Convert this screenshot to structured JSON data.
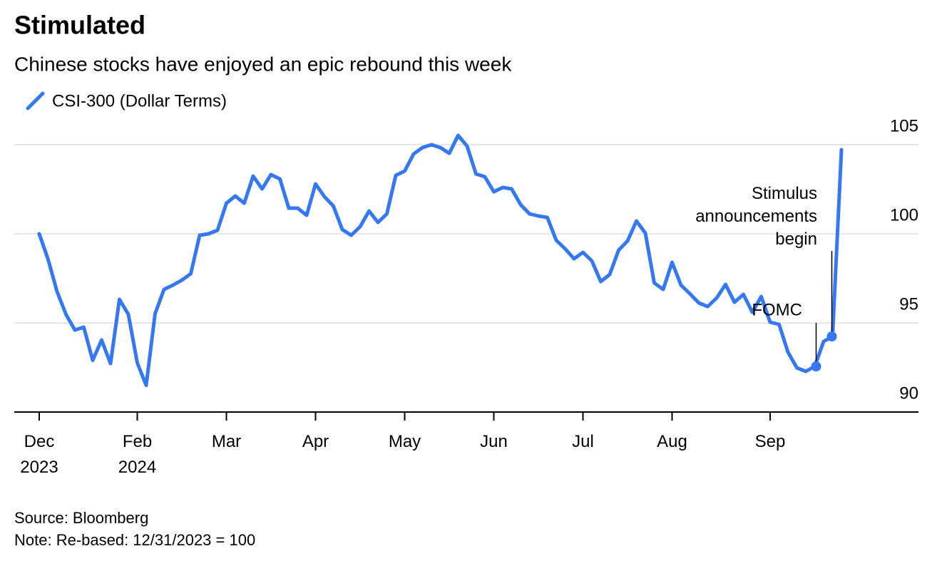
{
  "chart_data": {
    "type": "line",
    "title": "Stimulated",
    "subtitle": "Chinese stocks have enjoyed an epic rebound this week",
    "categories": [
      "Dec 2023",
      null,
      null,
      null,
      null,
      null,
      null,
      null,
      null,
      null,
      null,
      "Feb 2024",
      null,
      null,
      null,
      null,
      null,
      null,
      null,
      null,
      null,
      "Mar",
      null,
      null,
      null,
      null,
      null,
      null,
      null,
      null,
      null,
      "Apr",
      null,
      null,
      null,
      null,
      null,
      null,
      null,
      null,
      null,
      "May",
      null,
      null,
      null,
      null,
      null,
      null,
      null,
      null,
      null,
      "Jun",
      null,
      null,
      null,
      null,
      null,
      null,
      null,
      null,
      null,
      "Jul",
      null,
      null,
      null,
      null,
      null,
      null,
      null,
      null,
      null,
      "Aug",
      null,
      null,
      null,
      null,
      null,
      null,
      null,
      null,
      null,
      null,
      "Sep",
      null,
      null,
      null,
      null,
      null,
      null,
      null,
      null
    ],
    "series": [
      {
        "name": "CSI-300 (Dollar Terms)",
        "color": "#3478f6",
        "values": [
          100.0,
          98.56,
          96.76,
          95.48,
          94.6,
          94.76,
          92.9,
          94.04,
          92.72,
          96.32,
          95.48,
          92.76,
          91.5,
          95.52,
          96.88,
          97.12,
          97.4,
          97.76,
          99.92,
          100.0,
          100.2,
          101.72,
          102.12,
          101.72,
          103.24,
          102.52,
          103.32,
          103.08,
          101.44,
          101.44,
          101.04,
          102.8,
          102.08,
          101.56,
          100.24,
          99.92,
          100.4,
          101.28,
          100.64,
          101.12,
          103.28,
          103.52,
          104.48,
          104.84,
          105.0,
          104.84,
          104.52,
          105.52,
          104.92,
          103.36,
          103.2,
          102.36,
          102.6,
          102.52,
          101.64,
          101.12,
          101.0,
          100.92,
          99.64,
          99.16,
          98.6,
          98.96,
          98.48,
          97.32,
          97.72,
          99.08,
          99.6,
          100.72,
          100.04,
          97.24,
          96.88,
          98.4,
          97.12,
          96.64,
          96.12,
          95.92,
          96.4,
          97.16,
          96.16,
          96.6,
          95.6,
          96.48,
          95.04,
          94.92,
          93.36,
          92.48,
          92.28,
          92.56,
          93.96,
          94.24,
          104.72
        ]
      }
    ],
    "ylim": [
      90,
      106.5
    ],
    "yticks": [
      90,
      95,
      100,
      105
    ],
    "grid": true,
    "annotations": [
      "FOMC",
      "Stimulus announcements begin"
    ],
    "source": "Source: Bloomberg",
    "note": "Note: Re-based: 12/31/2023 = 100"
  }
}
